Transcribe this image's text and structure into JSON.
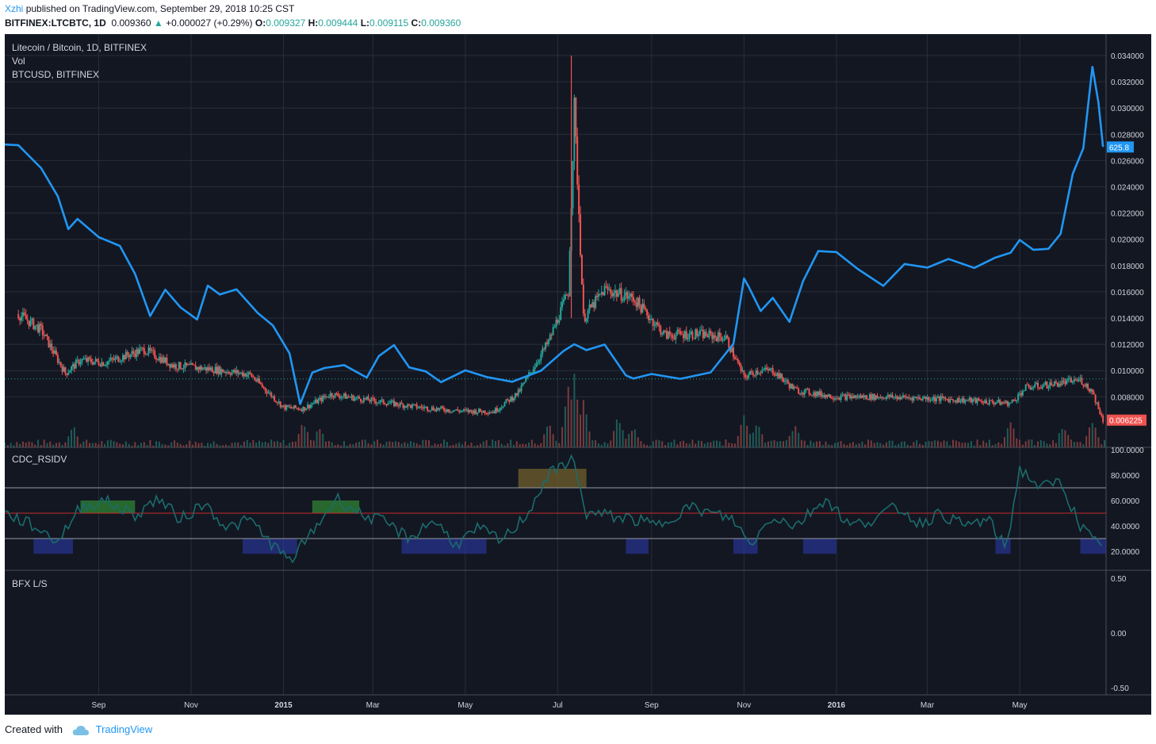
{
  "header": {
    "user": "Xzhi",
    "published": "published on TradingView.com, September 29, 2018 10:25 CST",
    "symbol": "BITFINEX:LTCBTC, 1D",
    "price": "0.009360",
    "change_arrow": "▲",
    "change": "+0.000027 (+0.29%)",
    "o_label": "O:",
    "o_value": "0.009327",
    "h_label": "H:",
    "h_value": "0.009444",
    "l_label": "L:",
    "l_value": "0.009115",
    "c_label": "C:",
    "c_value": "0.009360"
  },
  "legend": {
    "main": "Litecoin / Bitcoin, 1D, BITFINEX",
    "vol": "Vol",
    "overlay": "BTCUSD, BITFINEX",
    "rsi": "CDC_RSIDV",
    "ls": "BFX L/S"
  },
  "colors": {
    "background": "#131722",
    "grid": "#2a2e39",
    "up": "#26a69a",
    "down": "#ef5350",
    "btc_line": "#2196f3",
    "rsi_line": "#1b6c6c",
    "axis_text": "#d1d4dc"
  },
  "chart_data": [
    {
      "type": "candlestick",
      "name": "Litecoin / Bitcoin, 1D, BITFINEX",
      "ylim": [
        0.006,
        0.0345
      ],
      "y_ticks": [
        "0.034000",
        "0.032000",
        "0.030000",
        "0.028000",
        "0.026000",
        "0.024000",
        "0.022000",
        "0.020000",
        "0.018000",
        "0.016000",
        "0.014000",
        "0.012000",
        "0.010000",
        "0.008000"
      ],
      "x_ticks": [
        "Sep",
        "Nov",
        "2015",
        "Mar",
        "May",
        "Jul",
        "Sep",
        "Nov",
        "2016",
        "Mar",
        "May"
      ],
      "last_price_label": "0.006225",
      "current_price_line": 0.00936,
      "x": [
        "2014-07-10",
        "2014-07-25",
        "2014-08-10",
        "2014-08-20",
        "2014-09-05",
        "2014-10-01",
        "2014-10-20",
        "2014-11-15",
        "2014-12-10",
        "2015-01-01",
        "2015-01-14",
        "2015-02-01",
        "2015-03-01",
        "2015-04-01",
        "2015-05-01",
        "2015-05-20",
        "2015-06-05",
        "2015-06-25",
        "2015-07-08",
        "2015-07-12",
        "2015-07-18",
        "2015-08-01",
        "2015-08-20",
        "2015-09-10",
        "2015-10-01",
        "2015-10-20",
        "2015-11-01",
        "2015-11-10",
        "2015-11-20",
        "2015-12-05",
        "2016-01-01",
        "2016-02-01",
        "2016-03-01",
        "2016-04-01",
        "2016-04-25",
        "2016-05-05",
        "2016-05-25",
        "2016-06-10",
        "2016-06-18",
        "2016-06-25"
      ],
      "close": [
        0.0143,
        0.0131,
        0.0098,
        0.0108,
        0.0106,
        0.0116,
        0.0104,
        0.0101,
        0.0097,
        0.0072,
        0.0071,
        0.0082,
        0.0077,
        0.0072,
        0.0069,
        0.0069,
        0.0083,
        0.0122,
        0.016,
        0.03,
        0.014,
        0.0162,
        0.0155,
        0.0127,
        0.0128,
        0.0125,
        0.0095,
        0.01,
        0.01,
        0.0085,
        0.008,
        0.008,
        0.0079,
        0.0077,
        0.0075,
        0.0087,
        0.009,
        0.0093,
        0.0084,
        0.0062
      ]
    },
    {
      "type": "line",
      "name": "BTCUSD, BITFINEX",
      "last_value_label": "625.8",
      "x": [
        "2014-07-01",
        "2014-07-10",
        "2014-07-25",
        "2014-08-05",
        "2014-08-12",
        "2014-08-18",
        "2014-09-01",
        "2014-09-15",
        "2014-09-25",
        "2014-10-05",
        "2014-10-15",
        "2014-10-25",
        "2014-11-05",
        "2014-11-12",
        "2014-11-20",
        "2014-12-01",
        "2014-12-15",
        "2014-12-25",
        "2015-01-05",
        "2015-01-12",
        "2015-01-20",
        "2015-01-28",
        "2015-02-10",
        "2015-02-25",
        "2015-03-05",
        "2015-03-15",
        "2015-03-25",
        "2015-04-05",
        "2015-04-15",
        "2015-05-01",
        "2015-05-15",
        "2015-06-01",
        "2015-06-20",
        "2015-07-05",
        "2015-07-12",
        "2015-07-20",
        "2015-08-01",
        "2015-08-15",
        "2015-08-20",
        "2015-09-01",
        "2015-09-20",
        "2015-10-10",
        "2015-10-25",
        "2015-11-01",
        "2015-11-04",
        "2015-11-12",
        "2015-11-20",
        "2015-12-01",
        "2015-12-10",
        "2015-12-20",
        "2016-01-01",
        "2016-01-15",
        "2016-02-01",
        "2016-02-15",
        "2016-03-01",
        "2016-03-15",
        "2016-04-01",
        "2016-04-15",
        "2016-04-25",
        "2016-05-01",
        "2016-05-10",
        "2016-05-20",
        "2016-05-28",
        "2016-06-05",
        "2016-06-12",
        "2016-06-18",
        "2016-06-22",
        "2016-06-25"
      ],
      "y": [
        630,
        625,
        590,
        535,
        480,
        505,
        475,
        455,
        410,
        335,
        380,
        355,
        330,
        390,
        375,
        380,
        340,
        320,
        270,
        180,
        230,
        240,
        250,
        225,
        270,
        285,
        250,
        245,
        225,
        235,
        235,
        225,
        240,
        270,
        290,
        275,
        280,
        230,
        225,
        230,
        230,
        240,
        290,
        400,
        390,
        340,
        360,
        320,
        390,
        450,
        440,
        420,
        380,
        420,
        420,
        430,
        420,
        430,
        450,
        460,
        450,
        450,
        480,
        580,
        620,
        760,
        700,
        625.8
      ]
    },
    {
      "type": "bar",
      "name": "Vol",
      "note": "volume histogram along bottom of price pane, spikes near 2015-07 and 2015-11"
    },
    {
      "type": "line",
      "name": "CDC_RSIDV",
      "ylim": [
        10,
        100
      ],
      "y_ticks": [
        "100.0000",
        "80.0000",
        "60.0000",
        "40.0000",
        "20.0000"
      ],
      "levels": [
        30,
        50,
        70
      ],
      "x": [
        "2014-07-01",
        "2014-07-20",
        "2014-08-05",
        "2014-08-20",
        "2014-09-05",
        "2014-09-25",
        "2014-10-10",
        "2014-10-25",
        "2014-11-10",
        "2014-11-25",
        "2014-12-10",
        "2014-12-25",
        "2015-01-05",
        "2015-01-20",
        "2015-02-05",
        "2015-02-20",
        "2015-03-10",
        "2015-03-25",
        "2015-04-10",
        "2015-04-25",
        "2015-05-10",
        "2015-05-25",
        "2015-06-10",
        "2015-06-25",
        "2015-07-05",
        "2015-07-10",
        "2015-07-20",
        "2015-08-05",
        "2015-08-20",
        "2015-09-05",
        "2015-09-25",
        "2015-10-10",
        "2015-10-25",
        "2015-11-05",
        "2015-11-20",
        "2015-12-05",
        "2015-12-25",
        "2016-01-10",
        "2016-01-25",
        "2016-02-10",
        "2016-02-25",
        "2016-03-10",
        "2016-03-25",
        "2016-04-10",
        "2016-04-22",
        "2016-05-01",
        "2016-05-15",
        "2016-05-28",
        "2016-06-10",
        "2016-06-25"
      ],
      "y": [
        50,
        40,
        28,
        55,
        60,
        48,
        62,
        45,
        58,
        38,
        45,
        25,
        12,
        35,
        62,
        50,
        42,
        30,
        45,
        25,
        38,
        28,
        48,
        80,
        88,
        95,
        50,
        48,
        45,
        40,
        55,
        50,
        45,
        25,
        48,
        40,
        62,
        40,
        45,
        55,
        42,
        50,
        40,
        45,
        22,
        85,
        70,
        75,
        40,
        20
      ]
    },
    {
      "type": "line",
      "name": "BFX L/S",
      "y_ticks": [
        "0.50",
        "0.00",
        "-0.50"
      ]
    }
  ]
}
